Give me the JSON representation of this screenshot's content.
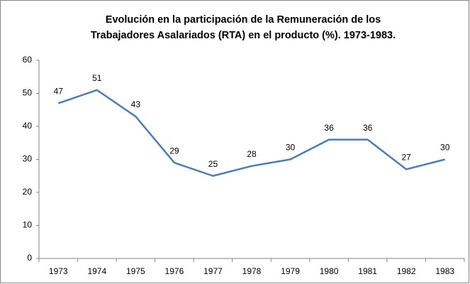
{
  "chart_data": {
    "type": "line",
    "title": [
      "Evolución en la participación de la Remuneración de los",
      "Trabajadores Asalariados (RTA) en el producto (%). 1973-1983."
    ],
    "categories": [
      "1973",
      "1974",
      "1975",
      "1976",
      "1977",
      "1978",
      "1979",
      "1980",
      "1981",
      "1982",
      "1983"
    ],
    "values": [
      47,
      51,
      43,
      29,
      25,
      28,
      30,
      36,
      36,
      27,
      30
    ],
    "color": "#4a7ebb",
    "ylim": [
      0,
      60
    ],
    "yticks": [
      0,
      10,
      20,
      30,
      40,
      50,
      60
    ],
    "grid": false
  }
}
